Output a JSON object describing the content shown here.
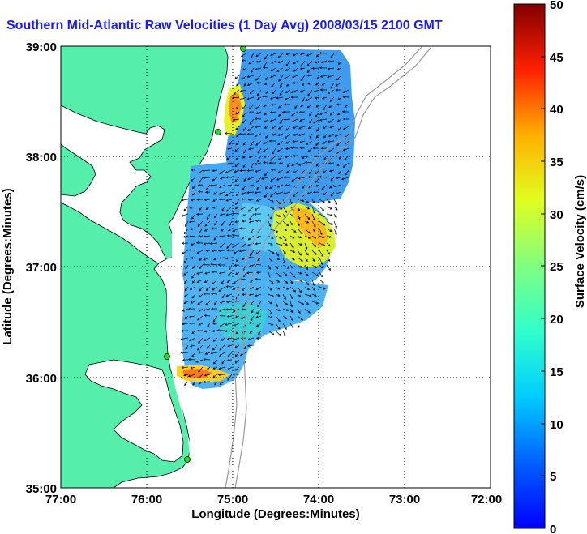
{
  "title": "Southern Mid-Atlantic Raw Velocities (1 Day Avg) 2008/03/15 2100 GMT",
  "xlabel": "Longitude (Degrees:Minutes)",
  "ylabel": "Latitude (Degrees:Minutes)",
  "x_ticks": [
    "77:00",
    "76:00",
    "75:00",
    "74:00",
    "73:00",
    "72:00"
  ],
  "y_ticks": [
    "39:00",
    "38:00",
    "37:00",
    "36:00",
    "35:00"
  ],
  "colorbar": {
    "label": "Surface Velocity (cm/s)",
    "ticks": [
      "0",
      "5",
      "10",
      "15",
      "20",
      "25",
      "30",
      "35",
      "40",
      "45",
      "50"
    ]
  },
  "colors": {
    "land": "#55eeaa",
    "title": "#1a1aff",
    "bathymetry": "#999999",
    "station": "#22dd22"
  }
}
